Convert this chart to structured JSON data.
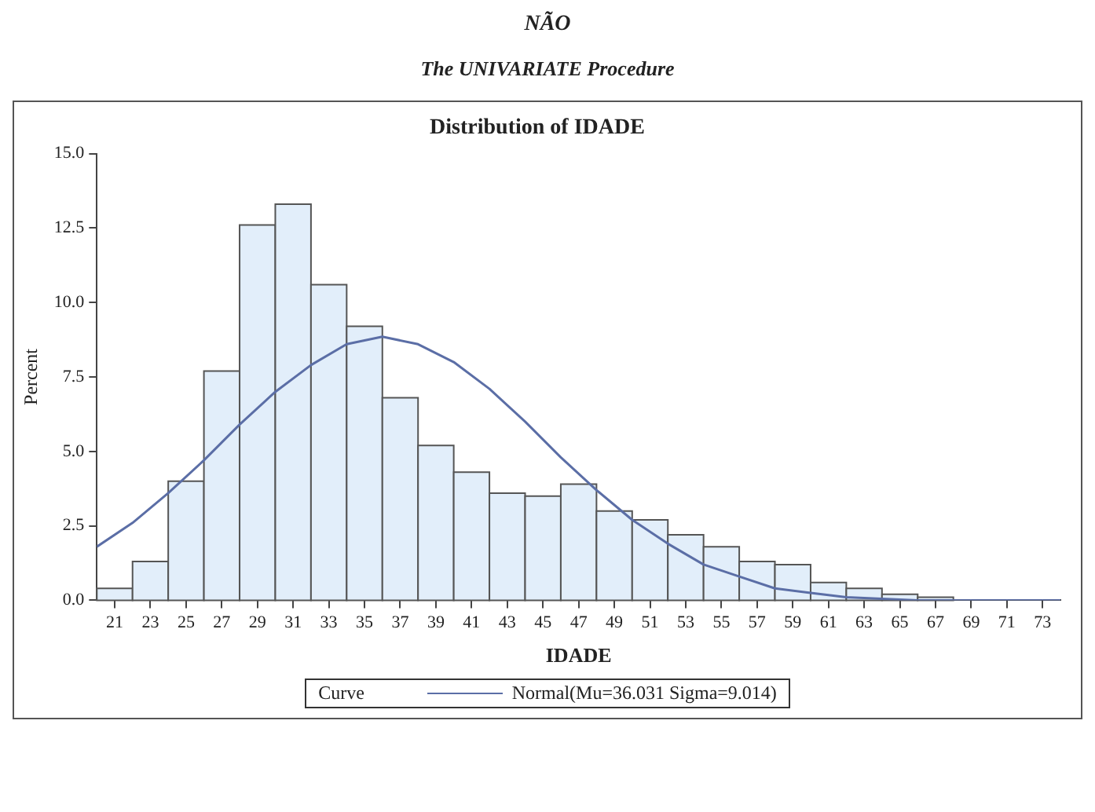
{
  "chart_data": {
    "type": "histogram",
    "title": "Distribution of IDADE",
    "annotations": [
      "NÃO",
      "The UNIVARIATE Procedure"
    ],
    "xlabel": "IDADE",
    "ylabel": "Percent",
    "legend_title": "Curve",
    "legend": "bottom",
    "grid": false,
    "bins": [
      20,
      22,
      24,
      26,
      28,
      30,
      32,
      34,
      36,
      38,
      40,
      42,
      44,
      46,
      48,
      50,
      52,
      54,
      56,
      58,
      60,
      62,
      64,
      66,
      68
    ],
    "values": [
      0.4,
      1.3,
      4.0,
      7.7,
      12.6,
      13.3,
      10.6,
      9.2,
      6.8,
      5.2,
      4.3,
      3.6,
      3.5,
      3.9,
      3.0,
      2.7,
      2.2,
      1.8,
      1.3,
      1.2,
      0.6,
      0.4,
      0.2,
      0.1
    ],
    "color": "#e2eefa",
    "series": [
      {
        "type": "line",
        "name": "Normal(Mu=36.031 Sigma=9.014)",
        "color": "#5b6ea6",
        "x": [
          20,
          22,
          24,
          26,
          28,
          30,
          32,
          34,
          36,
          38,
          40,
          42,
          44,
          46,
          48,
          50,
          52,
          54,
          56,
          58,
          60,
          62,
          64,
          66,
          70,
          74
        ],
        "values": [
          1.8,
          2.6,
          3.6,
          4.7,
          5.9,
          7.0,
          7.9,
          8.6,
          8.85,
          8.6,
          8.0,
          7.1,
          6.0,
          4.8,
          3.7,
          2.7,
          1.9,
          1.2,
          0.8,
          0.4,
          0.25,
          0.1,
          0.05,
          0,
          0,
          0
        ]
      }
    ],
    "xlim": [
      20,
      74
    ],
    "xticks": [
      21,
      23,
      25,
      27,
      29,
      31,
      33,
      35,
      37,
      39,
      41,
      43,
      45,
      47,
      49,
      51,
      53,
      55,
      57,
      59,
      61,
      63,
      65,
      67,
      69,
      71,
      73
    ],
    "ylim": [
      0,
      15
    ],
    "yticks": [
      {
        "value": 0,
        "label": "0.0"
      },
      {
        "value": 2.5,
        "label": "2.5"
      },
      {
        "value": 5,
        "label": "5.0"
      },
      {
        "value": 7.5,
        "label": "7.5"
      },
      {
        "value": 10,
        "label": "10.0"
      },
      {
        "value": 12.5,
        "label": "12.5"
      },
      {
        "value": 15,
        "label": "15.0"
      }
    ]
  }
}
